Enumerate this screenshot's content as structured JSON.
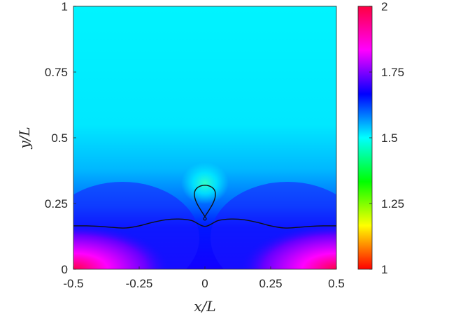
{
  "chart_data": {
    "type": "heatmap",
    "title": "",
    "xlabel": "x/L",
    "ylabel": "y/L",
    "xlim": [
      -0.5,
      0.5
    ],
    "ylim": [
      0,
      1
    ],
    "x_ticks": [
      "-0.5",
      "-0.25",
      "0",
      "0.25",
      "0.5"
    ],
    "y_ticks": [
      "0",
      "0.25",
      "0.5",
      "0.75",
      "1"
    ],
    "colorbar": {
      "range": [
        1,
        2
      ],
      "ticks": [
        "1",
        "1.25",
        "1.5",
        "1.75",
        "2"
      ],
      "colormap": [
        "#ff0000",
        "#ffff00",
        "#00ff00",
        "#00ffff",
        "#0000ff",
        "#ff00ff",
        "#ff0040"
      ]
    },
    "field_description_values": {
      "far_field": 1.53,
      "bottom_corners": 1.98,
      "below_interface_center": 1.72
    },
    "interface_curve": {
      "x": [
        -0.5,
        -0.45,
        -0.4,
        -0.35,
        -0.3,
        -0.25,
        -0.2,
        -0.15,
        -0.1,
        -0.05,
        0,
        0.05,
        0.1,
        0.15,
        0.2,
        0.25,
        0.3,
        0.35,
        0.4,
        0.45,
        0.5
      ],
      "y": [
        0.165,
        0.165,
        0.163,
        0.159,
        0.157,
        0.165,
        0.178,
        0.188,
        0.191,
        0.185,
        0.163,
        0.185,
        0.191,
        0.188,
        0.178,
        0.165,
        0.157,
        0.159,
        0.163,
        0.165,
        0.165
      ]
    },
    "bubble_contour": {
      "center_x": 0,
      "top_y": 0.335,
      "bottom_y": 0.2,
      "half_width": 0.04
    }
  }
}
